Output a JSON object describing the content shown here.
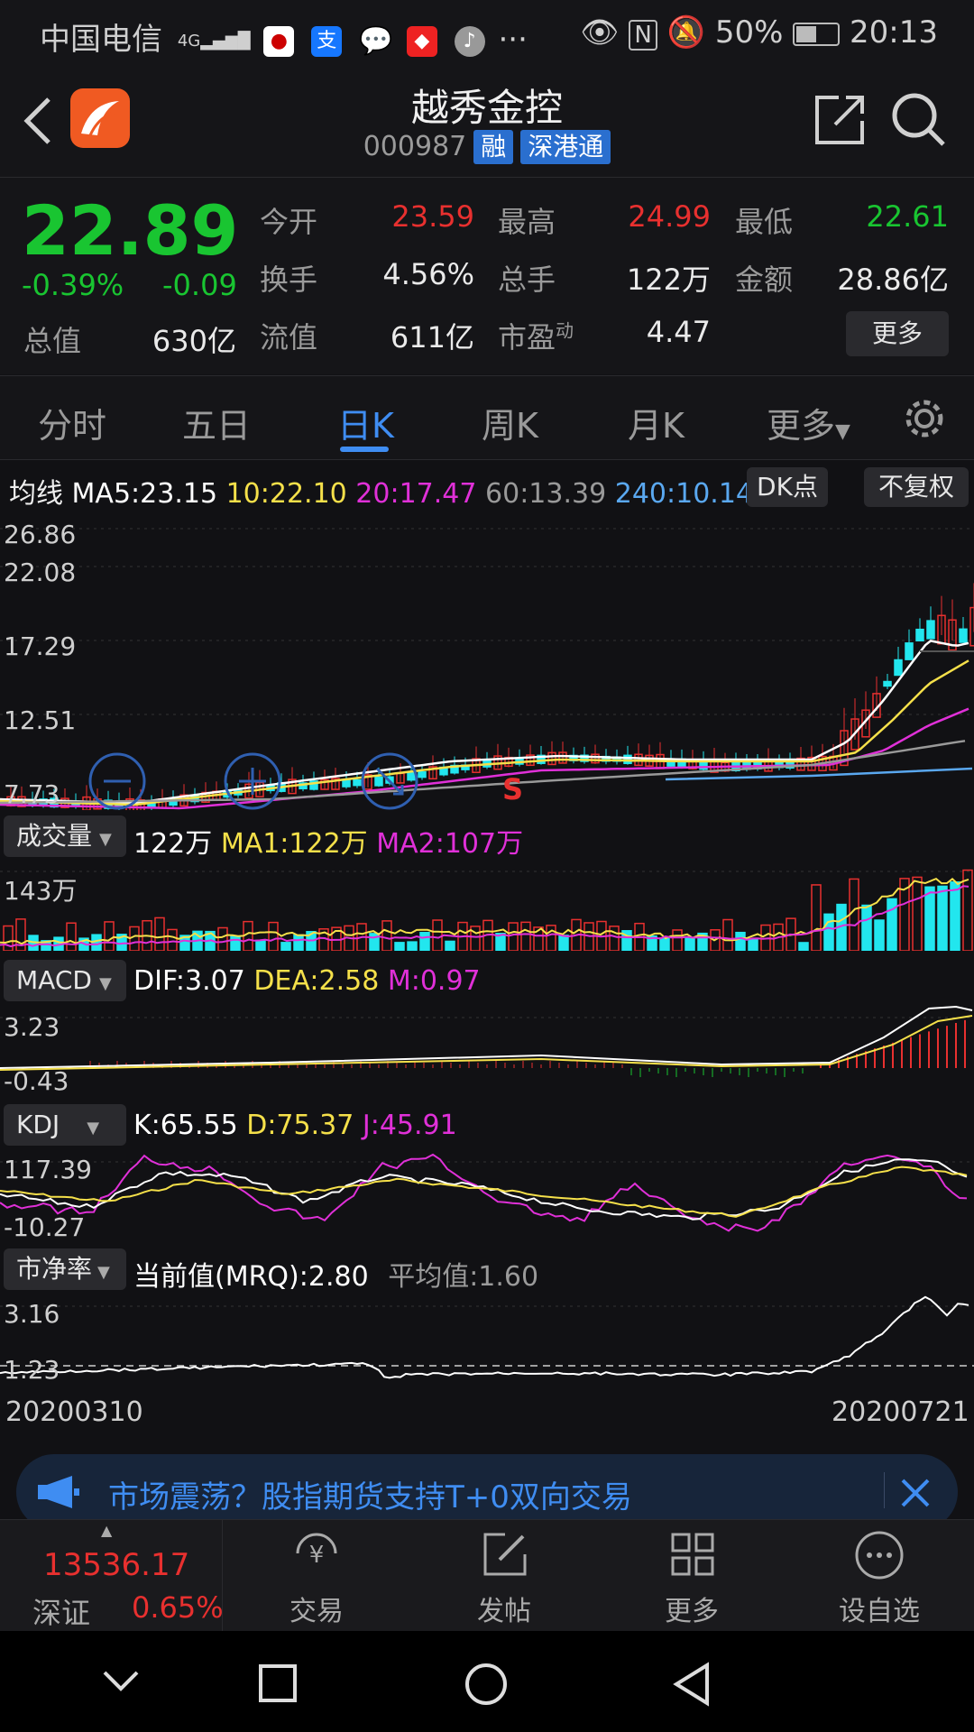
{
  "status": {
    "carrier": "中国电信",
    "signal": "4G",
    "battery": "50%",
    "time": "20:13",
    "more": "···"
  },
  "header": {
    "title": "越秀金控",
    "code": "000987",
    "tags": [
      "融",
      "深港通"
    ]
  },
  "quote": {
    "price": "22.89",
    "change_pct": "-0.39%",
    "change": "-0.09",
    "total_value_label": "总值",
    "total_value": "630亿",
    "rows": [
      [
        {
          "label": "今开",
          "value": "23.59",
          "color": "red"
        },
        {
          "label": "最高",
          "value": "24.99",
          "color": "red"
        },
        {
          "label": "最低",
          "value": "22.61",
          "color": "grn"
        }
      ],
      [
        {
          "label": "换手",
          "value": "4.56%",
          "color": "wht"
        },
        {
          "label": "总手",
          "value": "122万",
          "color": "wht"
        },
        {
          "label": "金额",
          "value": "28.86亿",
          "color": "wht"
        }
      ]
    ],
    "float_label": "流值",
    "float_value": "611亿",
    "pe_label": "市盈",
    "pe_sup": "动",
    "pe_value": "4.47",
    "more_button": "更多"
  },
  "tabs": [
    "分时",
    "五日",
    "日K",
    "周K",
    "月K",
    "更多"
  ],
  "active_tab": "日K",
  "ma": {
    "label": "均线",
    "ma5": "MA5:23.15",
    "ma10": "10:22.10",
    "ma20": "20:17.47",
    "ma60": "60:13.39",
    "ma240": "240:10.14",
    "dk_button": "DK点",
    "fq_button": "不复权"
  },
  "kline_axis": [
    "26.86",
    "22.08",
    "17.29",
    "12.51",
    "7.73"
  ],
  "signal_mark": "S",
  "volume": {
    "selector": "成交量",
    "value": "122万",
    "ma1": "MA1:122万",
    "ma2": "MA2:107万",
    "axis_top": "143万"
  },
  "macd": {
    "selector": "MACD",
    "dif": "DIF:3.07",
    "dea": "DEA:2.58",
    "m": "M:0.97",
    "axis_top": "3.23",
    "axis_bottom": "-0.43"
  },
  "kdj": {
    "selector": "KDJ",
    "k": "K:65.55",
    "d": "D:75.37",
    "j": "J:45.91",
    "axis_top": "117.39",
    "axis_bottom": "-10.27"
  },
  "pb": {
    "selector": "市净率",
    "current": "当前值(MRQ):2.80",
    "average": "平均值:1.60",
    "axis_top": "3.16",
    "axis_bottom": "1.23"
  },
  "dates": {
    "start": "20200310",
    "end": "20200721"
  },
  "ad": {
    "text": "市场震荡？股指期货支持T+0双向交易"
  },
  "bottom": {
    "index_value": "13536.17",
    "index_name": "深证",
    "index_pct": "0.65%",
    "buttons": [
      "交易",
      "发帖",
      "更多",
      "设自选"
    ]
  },
  "colors": {
    "up": "#e8302f",
    "down": "#19c531",
    "accent": "#3f8df2",
    "ma5": "#ffffff",
    "ma10": "#f5e04a",
    "ma20": "#e030d8",
    "ma60": "#999999",
    "ma240": "#5aa8f0",
    "vol_down": "#22e6ee"
  }
}
